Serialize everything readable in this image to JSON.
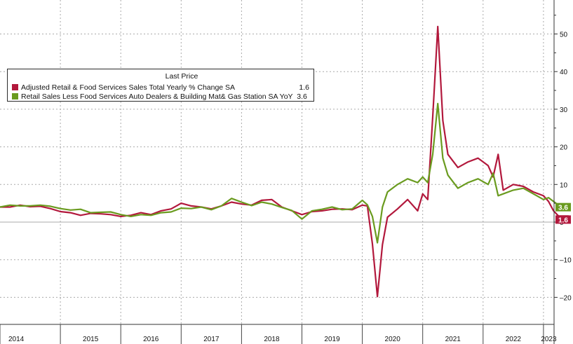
{
  "chart_data": {
    "type": "line",
    "title": "",
    "xlabel": "",
    "ylabel": "",
    "ylim": [
      -22.5,
      57
    ],
    "y_ticks": [
      "-20",
      "-10",
      "0",
      "10",
      "20",
      "30",
      "40",
      "50"
    ],
    "year_ticks": [
      "2014",
      "2015",
      "2016",
      "2017",
      "2018",
      "2019",
      "2020",
      "2021",
      "2022",
      "2023"
    ],
    "x_start": "2014-01",
    "x_end": "2023-06",
    "grid": true,
    "legend": {
      "placement": "top-left",
      "header": "Last Price",
      "entries": [
        {
          "name": "Adjusted Retail & Food Services Sales Total Yearly % Change SA",
          "last": "1.6"
        },
        {
          "name": "Retail Sales Less Food Services Auto Dealers & Building Mat& Gas Station SA YoY",
          "last": "3.6"
        }
      ]
    },
    "series": [
      {
        "name": "Adjusted Retail & Food Services Sales Total Yearly % Change SA",
        "color": "#b2183c",
        "last_label": "1.6",
        "points": [
          [
            "2014-01",
            4.0
          ],
          [
            "2014-03",
            4.0
          ],
          [
            "2014-05",
            4.5
          ],
          [
            "2014-07",
            4.1
          ],
          [
            "2014-09",
            4.2
          ],
          [
            "2014-11",
            3.6
          ],
          [
            "2015-01",
            2.8
          ],
          [
            "2015-03",
            2.5
          ],
          [
            "2015-05",
            1.8
          ],
          [
            "2015-07",
            2.3
          ],
          [
            "2015-09",
            2.2
          ],
          [
            "2015-11",
            2.0
          ],
          [
            "2016-01",
            1.5
          ],
          [
            "2016-03",
            1.8
          ],
          [
            "2016-05",
            2.5
          ],
          [
            "2016-07",
            2.0
          ],
          [
            "2016-09",
            3.0
          ],
          [
            "2016-11",
            3.5
          ],
          [
            "2017-01",
            5.0
          ],
          [
            "2017-03",
            4.3
          ],
          [
            "2017-05",
            4.0
          ],
          [
            "2017-07",
            3.5
          ],
          [
            "2017-09",
            4.3
          ],
          [
            "2017-11",
            5.3
          ],
          [
            "2018-01",
            4.8
          ],
          [
            "2018-03",
            4.5
          ],
          [
            "2018-05",
            5.8
          ],
          [
            "2018-07",
            6.0
          ],
          [
            "2018-09",
            4.0
          ],
          [
            "2018-11",
            3.0
          ],
          [
            "2019-01",
            2.0
          ],
          [
            "2019-03",
            2.8
          ],
          [
            "2019-05",
            3.0
          ],
          [
            "2019-07",
            3.4
          ],
          [
            "2019-09",
            3.5
          ],
          [
            "2019-11",
            3.3
          ],
          [
            "2020-01",
            4.5
          ],
          [
            "2020-02",
            4.3
          ],
          [
            "2020-03",
            -5.8
          ],
          [
            "2020-04",
            -19.8
          ],
          [
            "2020-05",
            -6.0
          ],
          [
            "2020-06",
            1.3
          ],
          [
            "2020-08",
            3.5
          ],
          [
            "2020-10",
            6.0
          ],
          [
            "2020-12",
            3.0
          ],
          [
            "2021-01",
            7.5
          ],
          [
            "2021-02",
            6.0
          ],
          [
            "2021-03",
            28.0
          ],
          [
            "2021-04",
            52.0
          ],
          [
            "2021-05",
            27.0
          ],
          [
            "2021-06",
            18.0
          ],
          [
            "2021-08",
            14.5
          ],
          [
            "2021-10",
            16.0
          ],
          [
            "2021-12",
            17.0
          ],
          [
            "2022-02",
            15.0
          ],
          [
            "2022-03",
            12.0
          ],
          [
            "2022-04",
            18.0
          ],
          [
            "2022-05",
            8.5
          ],
          [
            "2022-07",
            10.0
          ],
          [
            "2022-09",
            9.5
          ],
          [
            "2022-11",
            8.0
          ],
          [
            "2023-01",
            7.0
          ],
          [
            "2023-02",
            5.5
          ],
          [
            "2023-03",
            3.0
          ],
          [
            "2023-04",
            1.6
          ],
          [
            "2023-06",
            1.6
          ]
        ]
      },
      {
        "name": "Retail Sales Less Food Services Auto Dealers & Building Mat& Gas Station SA YoY",
        "color": "#6a9b1f",
        "last_label": "3.6",
        "points": [
          [
            "2014-01",
            4.0
          ],
          [
            "2014-03",
            4.5
          ],
          [
            "2014-05",
            4.3
          ],
          [
            "2014-07",
            4.3
          ],
          [
            "2014-09",
            4.5
          ],
          [
            "2014-11",
            4.2
          ],
          [
            "2015-01",
            3.6
          ],
          [
            "2015-03",
            3.2
          ],
          [
            "2015-05",
            3.4
          ],
          [
            "2015-07",
            2.5
          ],
          [
            "2015-09",
            2.6
          ],
          [
            "2015-11",
            2.7
          ],
          [
            "2016-01",
            2.0
          ],
          [
            "2016-03",
            1.5
          ],
          [
            "2016-05",
            2.0
          ],
          [
            "2016-07",
            1.8
          ],
          [
            "2016-09",
            2.5
          ],
          [
            "2016-11",
            2.7
          ],
          [
            "2017-01",
            3.7
          ],
          [
            "2017-03",
            3.6
          ],
          [
            "2017-05",
            4.0
          ],
          [
            "2017-07",
            3.3
          ],
          [
            "2017-09",
            4.3
          ],
          [
            "2017-11",
            6.3
          ],
          [
            "2018-01",
            5.3
          ],
          [
            "2018-03",
            4.4
          ],
          [
            "2018-05",
            5.3
          ],
          [
            "2018-07",
            4.8
          ],
          [
            "2018-09",
            3.9
          ],
          [
            "2018-11",
            3.1
          ],
          [
            "2019-01",
            0.8
          ],
          [
            "2019-03",
            3.0
          ],
          [
            "2019-05",
            3.4
          ],
          [
            "2019-07",
            4.0
          ],
          [
            "2019-09",
            3.3
          ],
          [
            "2019-11",
            3.5
          ],
          [
            "2020-01",
            5.8
          ],
          [
            "2020-02",
            4.6
          ],
          [
            "2020-03",
            1.5
          ],
          [
            "2020-04",
            -5.5
          ],
          [
            "2020-05",
            4.0
          ],
          [
            "2020-06",
            8.0
          ],
          [
            "2020-08",
            10.0
          ],
          [
            "2020-10",
            11.5
          ],
          [
            "2020-12",
            10.5
          ],
          [
            "2021-01",
            12.0
          ],
          [
            "2021-02",
            10.5
          ],
          [
            "2021-03",
            18.0
          ],
          [
            "2021-04",
            31.5
          ],
          [
            "2021-05",
            17.0
          ],
          [
            "2021-06",
            12.5
          ],
          [
            "2021-08",
            9.0
          ],
          [
            "2021-10",
            10.5
          ],
          [
            "2021-12",
            11.5
          ],
          [
            "2022-02",
            10.0
          ],
          [
            "2022-03",
            13.0
          ],
          [
            "2022-04",
            7.0
          ],
          [
            "2022-05",
            7.5
          ],
          [
            "2022-07",
            8.5
          ],
          [
            "2022-09",
            9.0
          ],
          [
            "2022-11",
            7.5
          ],
          [
            "2023-01",
            6.0
          ],
          [
            "2023-02",
            6.5
          ],
          [
            "2023-03",
            5.5
          ],
          [
            "2023-04",
            4.5
          ],
          [
            "2023-06",
            3.6
          ]
        ]
      }
    ]
  }
}
